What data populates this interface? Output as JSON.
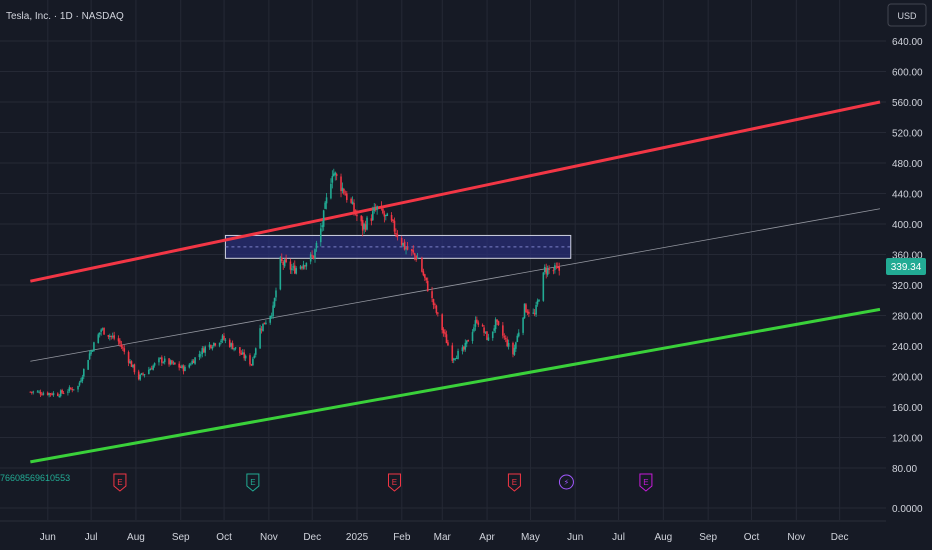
{
  "header": {
    "symbol_title": "Tesla, Inc. · 1D · NASDAQ"
  },
  "currency_button": {
    "label": "USD"
  },
  "price_badge": {
    "value": "339.34",
    "color": "#22ab94"
  },
  "stray_label": {
    "text": "76608569610553",
    "color": "#22ab94"
  },
  "colors": {
    "background": "#161a25",
    "grid": "#252935",
    "up_candle": "#22ab94",
    "down_candle": "#f23645",
    "upper_channel": "#f23645",
    "lower_channel": "#3ad13a",
    "mid_line": "#9598a1",
    "zone_fill": "#2a2f7a",
    "zone_border": "#d0d3e0",
    "axis_text": "#d1d4dc"
  },
  "chart_data": {
    "type": "candlestick",
    "title": "Tesla, Inc. · 1D · NASDAQ",
    "x_tick_labels": [
      "Jun",
      "Jul",
      "Aug",
      "Sep",
      "Oct",
      "Nov",
      "Dec",
      "2025",
      "Feb",
      "Mar",
      "Apr",
      "May",
      "Jun",
      "Jul",
      "Aug",
      "Sep",
      "Oct",
      "Nov",
      "Dec"
    ],
    "y_tick_labels": [
      "0.0000",
      "80.00",
      "120.00",
      "160.00",
      "200.00",
      "240.00",
      "280.00",
      "320.00",
      "360.00",
      "400.00",
      "440.00",
      "480.00",
      "520.00",
      "560.00",
      "600.00",
      "640.00"
    ],
    "y_scale": "piecewise (compressed below 80)",
    "last_price": 339.34,
    "price_path": [
      {
        "date": "2024-05-22",
        "close": 180
      },
      {
        "date": "2024-06-10",
        "close": 177
      },
      {
        "date": "2024-06-24",
        "close": 187
      },
      {
        "date": "2024-07-02",
        "close": 230
      },
      {
        "date": "2024-07-10",
        "close": 262
      },
      {
        "date": "2024-07-22",
        "close": 246
      },
      {
        "date": "2024-08-05",
        "close": 198
      },
      {
        "date": "2024-08-20",
        "close": 222
      },
      {
        "date": "2024-09-06",
        "close": 210
      },
      {
        "date": "2024-09-20",
        "close": 238
      },
      {
        "date": "2024-10-02",
        "close": 250
      },
      {
        "date": "2024-10-10",
        "close": 238
      },
      {
        "date": "2024-10-22",
        "close": 217
      },
      {
        "date": "2024-10-28",
        "close": 262
      },
      {
        "date": "2024-11-06",
        "close": 288
      },
      {
        "date": "2024-11-11",
        "close": 350
      },
      {
        "date": "2024-11-20",
        "close": 340
      },
      {
        "date": "2024-12-04",
        "close": 358
      },
      {
        "date": "2024-12-10",
        "close": 400
      },
      {
        "date": "2024-12-17",
        "close": 470
      },
      {
        "date": "2024-12-26",
        "close": 440
      },
      {
        "date": "2025-01-07",
        "close": 395
      },
      {
        "date": "2025-01-17",
        "close": 420
      },
      {
        "date": "2025-01-27",
        "close": 400
      },
      {
        "date": "2025-02-05",
        "close": 370
      },
      {
        "date": "2025-02-14",
        "close": 355
      },
      {
        "date": "2025-02-24",
        "close": 300
      },
      {
        "date": "2025-03-10",
        "close": 225
      },
      {
        "date": "2025-03-18",
        "close": 235
      },
      {
        "date": "2025-03-27",
        "close": 275
      },
      {
        "date": "2025-04-04",
        "close": 248
      },
      {
        "date": "2025-04-09",
        "close": 270
      },
      {
        "date": "2025-04-21",
        "close": 230
      },
      {
        "date": "2025-04-29",
        "close": 290
      },
      {
        "date": "2025-05-06",
        "close": 280
      },
      {
        "date": "2025-05-13",
        "close": 340
      },
      {
        "date": "2025-05-23",
        "close": 339.34
      }
    ],
    "drawings": {
      "upper_channel": {
        "color": "red",
        "start": {
          "date": "2024-05-22",
          "price": 325
        },
        "end": {
          "date": "2025-12-31",
          "price": 560
        }
      },
      "mid_line": {
        "color": "gray",
        "start": {
          "date": "2024-05-22",
          "price": 220
        },
        "end": {
          "date": "2025-12-31",
          "price": 420
        }
      },
      "lower_channel": {
        "color": "green",
        "start": {
          "date": "2024-05-22",
          "price": 88
        },
        "end": {
          "date": "2025-12-31",
          "price": 288
        }
      },
      "zone": {
        "from_date": "2024-10-04",
        "to_date": "2025-05-31",
        "top": 385,
        "bottom": 355
      }
    },
    "event_markers": [
      {
        "date": "2024-07-23",
        "label": "E",
        "color": "#f23645"
      },
      {
        "date": "2024-10-23",
        "label": "E",
        "color": "#22ab94"
      },
      {
        "date": "2025-01-29",
        "label": "E",
        "color": "#f23645"
      },
      {
        "date": "2025-04-22",
        "label": "E",
        "color": "#f23645"
      },
      {
        "date": "2025-05-28",
        "label": "⚡",
        "color": "#a259ff"
      },
      {
        "date": "2025-07-22",
        "label": "E",
        "color": "#c61ad9"
      }
    ]
  }
}
